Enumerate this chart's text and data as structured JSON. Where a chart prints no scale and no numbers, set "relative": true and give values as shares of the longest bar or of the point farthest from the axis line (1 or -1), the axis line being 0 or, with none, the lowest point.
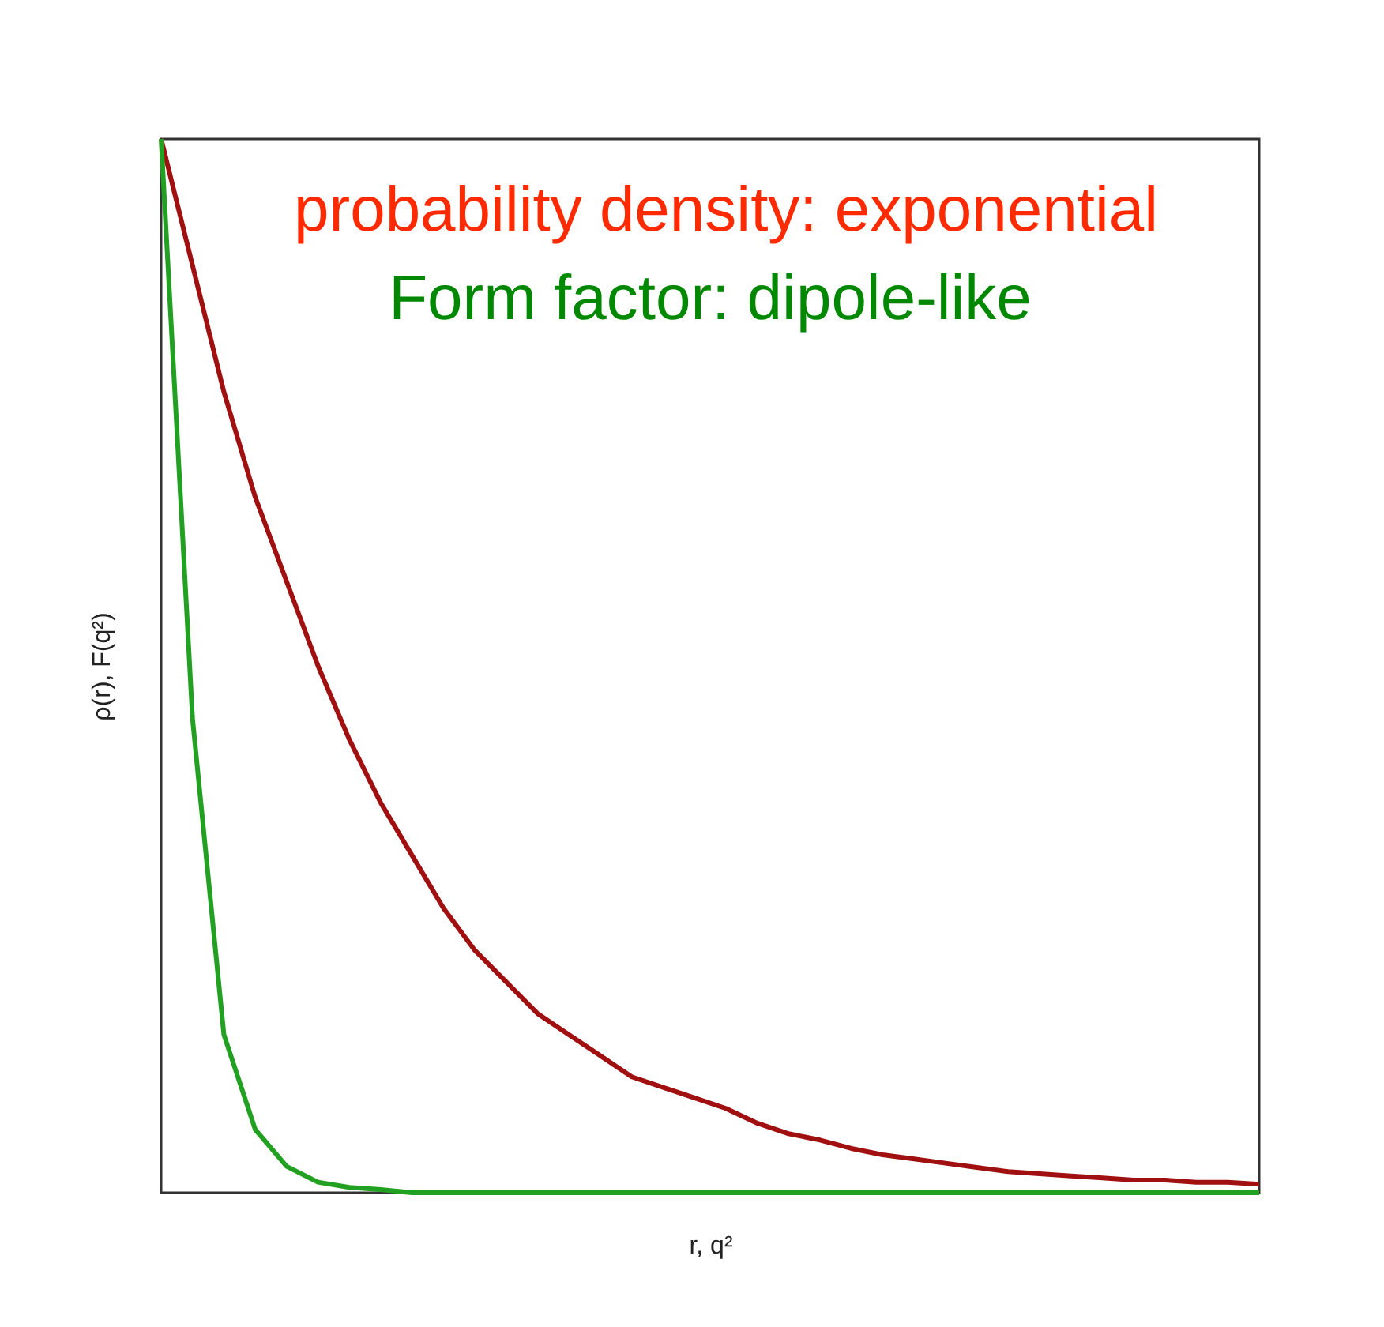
{
  "chart_data": {
    "type": "line",
    "title": "probability density: exponential",
    "subtitle": "Form factor: dipole-like",
    "xlabel": "r, q²",
    "ylabel": "ρ(r), F(q²)",
    "relative": true,
    "grid": false,
    "marker": "none",
    "line_style": "solid",
    "tick_labels": false,
    "categories": [
      null,
      null,
      null,
      null,
      null,
      null,
      null,
      null,
      null,
      null,
      null,
      null,
      null,
      null,
      null,
      null,
      null,
      null,
      null,
      null,
      null,
      null,
      null,
      null,
      null,
      null,
      null,
      null,
      null,
      null,
      null,
      null,
      null,
      null,
      null,
      null
    ],
    "series": [
      {
        "color": "#a01010",
        "values": [
          1.0,
          0.88,
          0.76,
          0.66,
          0.58,
          0.5,
          0.43,
          0.37,
          0.32,
          0.27,
          0.23,
          0.2,
          0.17,
          0.15,
          0.13,
          0.11,
          0.1,
          0.09,
          0.08,
          0.066,
          0.056,
          0.05,
          0.042,
          0.036,
          0.032,
          0.028,
          0.024,
          0.02,
          0.018,
          0.016,
          0.014,
          0.012,
          0.012,
          0.01,
          0.01,
          0.008
        ]
      },
      {
        "color": "#22a022",
        "values": [
          1.0,
          0.45,
          0.15,
          0.06,
          0.025,
          0.01,
          0.005,
          0.003,
          0,
          0,
          0,
          0,
          0,
          0,
          0,
          0,
          0,
          0,
          0,
          0,
          0,
          0,
          0,
          0,
          0,
          0,
          0,
          0,
          0,
          0,
          0,
          0,
          0,
          0,
          0,
          0
        ]
      }
    ]
  }
}
